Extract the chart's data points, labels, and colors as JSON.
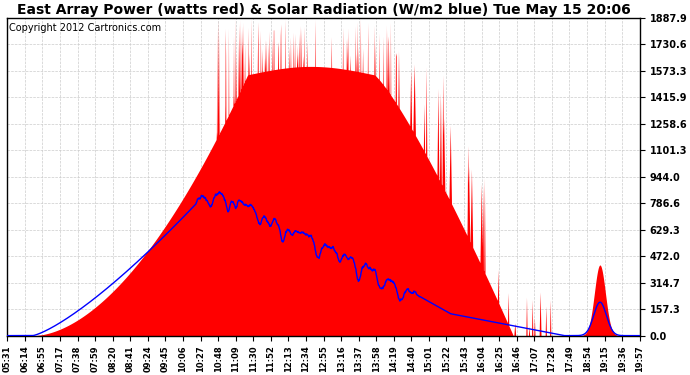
{
  "title": "East Array Power (watts red) & Solar Radiation (W/m2 blue) Tue May 15 20:06",
  "copyright": "Copyright 2012 Cartronics.com",
  "yticks": [
    0.0,
    157.3,
    314.7,
    472.0,
    629.3,
    786.6,
    944.0,
    1101.3,
    1258.6,
    1415.9,
    1573.3,
    1730.6,
    1887.9
  ],
  "ymax": 1887.9,
  "ymin": 0.0,
  "xtick_labels": [
    "05:31",
    "06:14",
    "06:55",
    "07:17",
    "07:38",
    "07:59",
    "08:20",
    "08:41",
    "09:24",
    "09:45",
    "10:06",
    "10:27",
    "10:48",
    "11:09",
    "11:30",
    "11:52",
    "12:13",
    "12:34",
    "12:55",
    "13:16",
    "13:37",
    "13:58",
    "14:19",
    "14:40",
    "15:01",
    "15:22",
    "15:43",
    "16:04",
    "16:25",
    "16:46",
    "17:07",
    "17:28",
    "17:49",
    "18:54",
    "19:15",
    "19:36",
    "19:57"
  ],
  "red_color": "#FF0000",
  "blue_color": "#0000FF",
  "bg_color": "#FFFFFF",
  "grid_color": "#CCCCCC",
  "title_fontsize": 10,
  "copyright_fontsize": 7,
  "tick_fontsize": 7,
  "xtick_fontsize": 6
}
